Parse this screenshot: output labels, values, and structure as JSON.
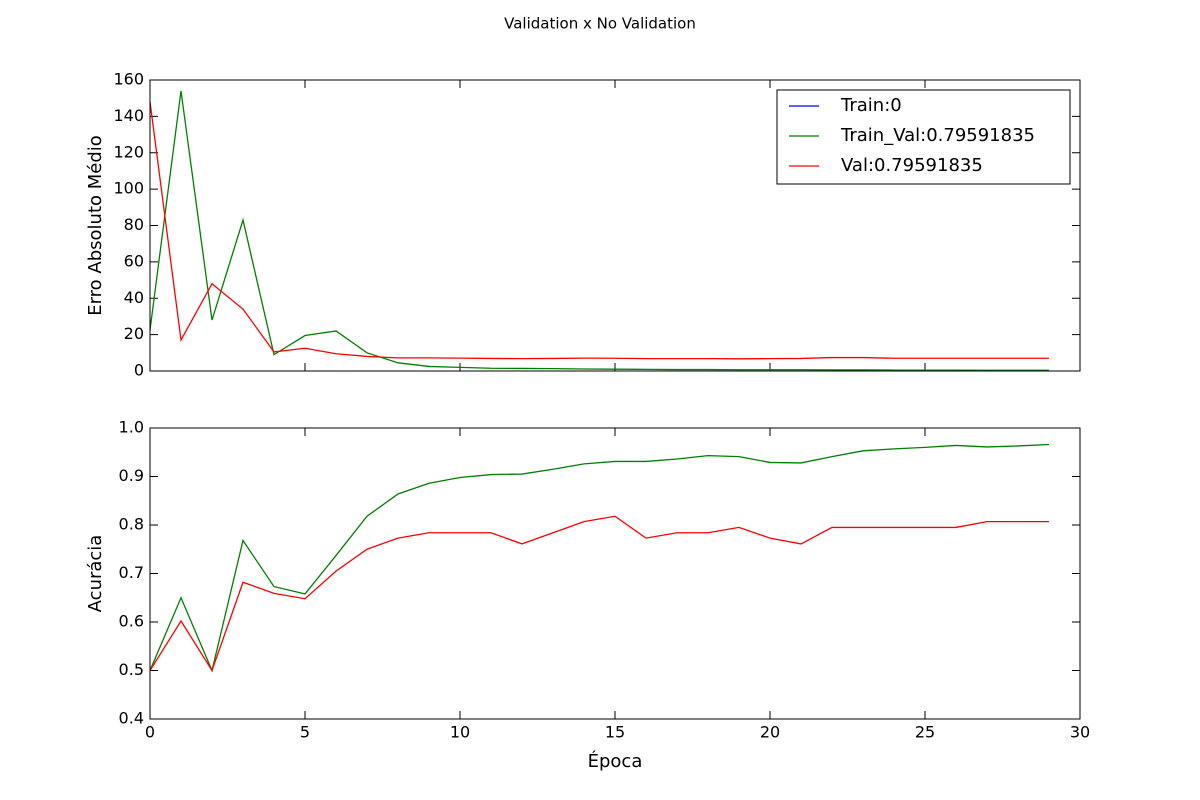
{
  "title": "Validation x No Validation",
  "chart_data": [
    {
      "type": "line",
      "ylabel": "Erro Absoluto Médio",
      "x": [
        0,
        1,
        2,
        3,
        4,
        5,
        6,
        7,
        8,
        9,
        10,
        11,
        12,
        13,
        14,
        15,
        16,
        17,
        18,
        19,
        20,
        21,
        22,
        23,
        24,
        25,
        26,
        27,
        28,
        29
      ],
      "xlim": [
        0,
        30
      ],
      "ylim": [
        0,
        160
      ],
      "yticks": [
        0,
        20,
        40,
        60,
        80,
        100,
        120,
        140,
        160
      ],
      "legend": "upper right",
      "series": [
        {
          "name": "Train:0",
          "color": "#0000ff",
          "values": [
            null,
            null,
            null,
            null,
            null,
            null,
            null,
            null,
            null,
            null,
            null,
            null,
            null,
            null,
            null,
            null,
            null,
            null,
            null,
            null,
            null,
            null,
            null,
            null,
            null,
            null,
            null,
            null,
            null,
            null
          ]
        },
        {
          "name": "Train_Val:0.79591835",
          "color": "#008000",
          "values": [
            22.5,
            154,
            28,
            83,
            9,
            19.5,
            22,
            10,
            4.5,
            2.5,
            2,
            1.5,
            1.4,
            1.3,
            1.1,
            1,
            0.9,
            0.8,
            0.8,
            0.7,
            0.7,
            0.7,
            0.6,
            0.6,
            0.5,
            0.5,
            0.5,
            0.4,
            0.4,
            0.4
          ]
        },
        {
          "name": "Val:0.79591835",
          "color": "#ff0000",
          "values": [
            148,
            17,
            48,
            34,
            10.5,
            12.5,
            9.5,
            8,
            7.2,
            7.2,
            7.1,
            6.9,
            6.8,
            6.9,
            7.1,
            7,
            6.8,
            6.8,
            6.8,
            6.7,
            6.8,
            6.9,
            7.4,
            7.4,
            7,
            7,
            7,
            7,
            7,
            7
          ]
        }
      ]
    },
    {
      "type": "line",
      "ylabel": "Acurácia",
      "xlabel": "Época",
      "x": [
        0,
        1,
        2,
        3,
        4,
        5,
        6,
        7,
        8,
        9,
        10,
        11,
        12,
        13,
        14,
        15,
        16,
        17,
        18,
        19,
        20,
        21,
        22,
        23,
        24,
        25,
        26,
        27,
        28,
        29
      ],
      "xlim": [
        0,
        30
      ],
      "xticks": [
        0,
        5,
        10,
        15,
        20,
        25,
        30
      ],
      "ylim": [
        0.4,
        1.0
      ],
      "yticks": [
        0.4,
        0.5,
        0.6,
        0.7,
        0.8,
        0.9,
        {
          "value": 1.0,
          "label": "1.0"
        }
      ],
      "series": [
        {
          "color": "#008000",
          "values": [
            0.5,
            0.65,
            0.5,
            0.768,
            0.673,
            0.658,
            0.737,
            0.818,
            0.864,
            0.886,
            0.898,
            0.904,
            0.905,
            0.915,
            0.926,
            0.931,
            0.931,
            0.936,
            0.943,
            0.941,
            0.929,
            0.928,
            0.941,
            0.953,
            0.957,
            0.96,
            0.964,
            0.961,
            0.963,
            0.966
          ]
        },
        {
          "color": "#ff0000",
          "values": [
            0.5,
            0.602,
            0.5,
            0.682,
            0.659,
            0.648,
            0.705,
            0.75,
            0.773,
            0.784,
            0.784,
            0.784,
            0.761,
            0.784,
            0.807,
            0.818,
            0.773,
            0.784,
            0.784,
            0.795,
            0.773,
            0.761,
            0.795,
            0.795,
            0.795,
            0.795,
            0.795,
            0.807,
            0.807,
            0.807
          ]
        }
      ]
    }
  ]
}
